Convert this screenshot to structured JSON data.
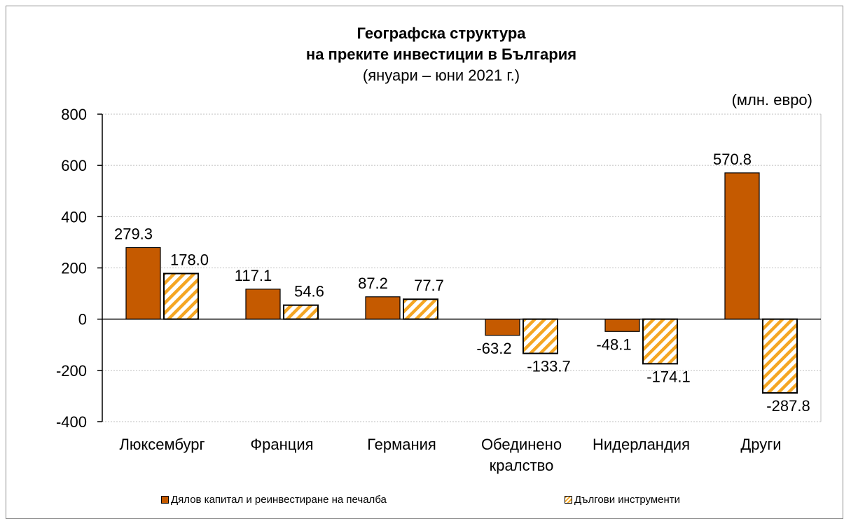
{
  "chart_data": {
    "type": "bar",
    "title_lines": [
      "Географска структура",
      "на преките инвестиции в България"
    ],
    "subtitle": "(януари – юни 2021 г.)",
    "unit_label": "(млн. евро)",
    "categories": [
      [
        "Люксембург"
      ],
      [
        "Франция"
      ],
      [
        "Германия"
      ],
      [
        "Обединено",
        "кралство"
      ],
      [
        "Нидерландия"
      ],
      [
        "Други"
      ]
    ],
    "series": [
      {
        "name": "Дялов капитал и реинвестиране на печалба",
        "values": [
          279.3,
          117.1,
          87.2,
          -63.2,
          -48.1,
          570.8
        ],
        "labels": [
          "279.3",
          "117.1",
          "87.2",
          "-63.2",
          "-48.1",
          "570.8"
        ],
        "color": "#c55a00",
        "fill": "solid"
      },
      {
        "name": "Дългови инструменти",
        "values": [
          178.0,
          54.6,
          77.7,
          -133.7,
          -174.1,
          -287.8
        ],
        "labels": [
          "178.0",
          "54.6",
          "77.7",
          "-133.7",
          "-174.1",
          "-287.8"
        ],
        "color": "#f5a623",
        "fill": "hatched"
      }
    ],
    "ylim": [
      -400,
      800
    ],
    "yticks": [
      800,
      600,
      400,
      200,
      0,
      -200,
      -400
    ],
    "grid": true,
    "legend_position": "bottom"
  }
}
